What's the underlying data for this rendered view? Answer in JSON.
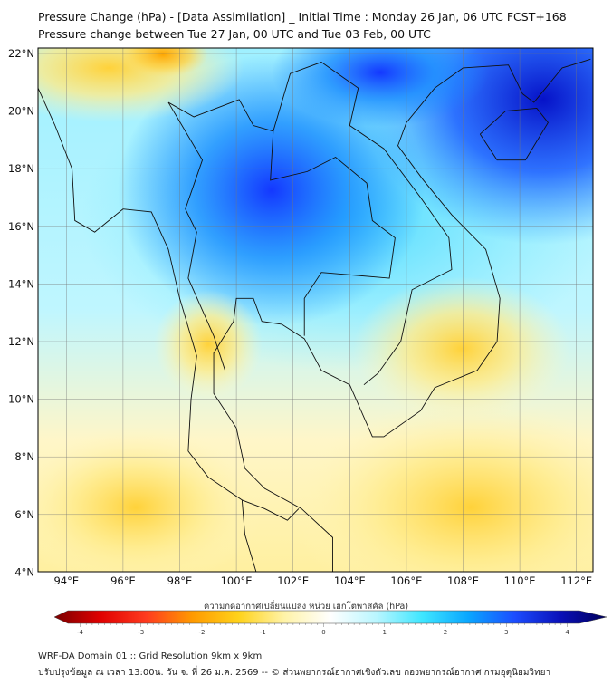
{
  "title": {
    "line1": "Pressure Change (hPa) - [Data Assimilation] _ Initial Time : Monday 26 Jan, 06 UTC FCST+168",
    "line2": "Pressure change between Tue 27 Jan, 00 UTC and Tue 03 Feb, 00 UTC"
  },
  "map": {
    "lat_labels": [
      "22°N",
      "20°N",
      "18°N",
      "16°N",
      "14°N",
      "12°N",
      "10°N",
      "8°N",
      "6°N",
      "4°N"
    ],
    "lat_values": [
      22,
      20,
      18,
      16,
      14,
      12,
      10,
      8,
      6,
      4
    ],
    "lon_labels": [
      "94°E",
      "96°E",
      "98°E",
      "100°E",
      "102°E",
      "104°E",
      "106°E",
      "108°E",
      "110°E",
      "112°E"
    ],
    "lon_values": [
      94,
      96,
      98,
      100,
      102,
      104,
      106,
      108,
      110,
      112
    ],
    "extent": {
      "lon": [
        93,
        112.5
      ],
      "lat": [
        4,
        22.2
      ]
    }
  },
  "colorbar": {
    "label": "ความกดอากาศเปลี่ยนแปลง หน่วย เฮกโตพาสคัล (hPa)",
    "ticks": [
      "-4",
      "-3",
      "-2",
      "-1",
      "0",
      "1",
      "2",
      "3",
      "4"
    ],
    "range": [
      -4.2,
      4.2
    ],
    "colors": [
      "#7a0000",
      "#e00000",
      "#ff3b1f",
      "#ff9a00",
      "#ffd21a",
      "#fff3a8",
      "#ffffff",
      "#b9f6ff",
      "#3ee6ff",
      "#0aa6ff",
      "#1c4dff",
      "#0a10b8",
      "#00005a"
    ]
  },
  "footer": {
    "line1": "WRF-DA Domain 01 :: Grid Resolution 9km x 9km",
    "line2": "ปรับปรุงข้อมูล ณ เวลา 13:00น. วัน จ. ที่ 26 ม.ค. 2569 -- © ส่วนพยากรณ์อากาศเชิงตัวเลข กองพยากรณ์อากาศ กรมอุตุนิยมวิทยา"
  }
}
